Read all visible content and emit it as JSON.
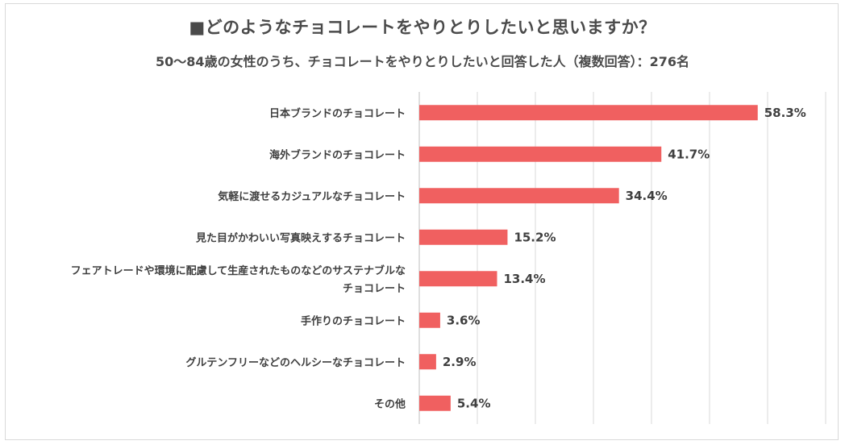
{
  "chart_data": {
    "type": "bar",
    "orientation": "horizontal",
    "title": "■どのようなチョコレートをやりとりしたいと思いますか？",
    "subtitle": "50～84歳の女性のうち、チョコレートをやりとりしたいと回答した人（複数回答）：276名",
    "categories": [
      [
        "日本ブランドのチョコレート"
      ],
      [
        "海外ブランドのチョコレート"
      ],
      [
        "気軽に渡せるカジュアルなチョコレート"
      ],
      [
        "見た目がかわいい写真映えするチョコレート"
      ],
      [
        "フェアトレードや環境に配慮して生産されたものなどのサステナブルな",
        "チョコレート"
      ],
      [
        "手作りのチョコレート"
      ],
      [
        "グルテンフリーなどのヘルシーなチョコレート"
      ],
      [
        "その他"
      ]
    ],
    "values": [
      58.3,
      41.7,
      34.4,
      15.2,
      13.4,
      3.6,
      2.9,
      5.4
    ],
    "value_labels": [
      "58.3%",
      "41.7%",
      "34.4%",
      "15.2%",
      "13.4%",
      "3.6%",
      "2.9%",
      "5.4%"
    ],
    "xlim": [
      0,
      70
    ],
    "grid": true,
    "legend": "none",
    "colors": {
      "bar": "#f06060",
      "grid": "#d9d9d9",
      "text": "#404040"
    }
  }
}
